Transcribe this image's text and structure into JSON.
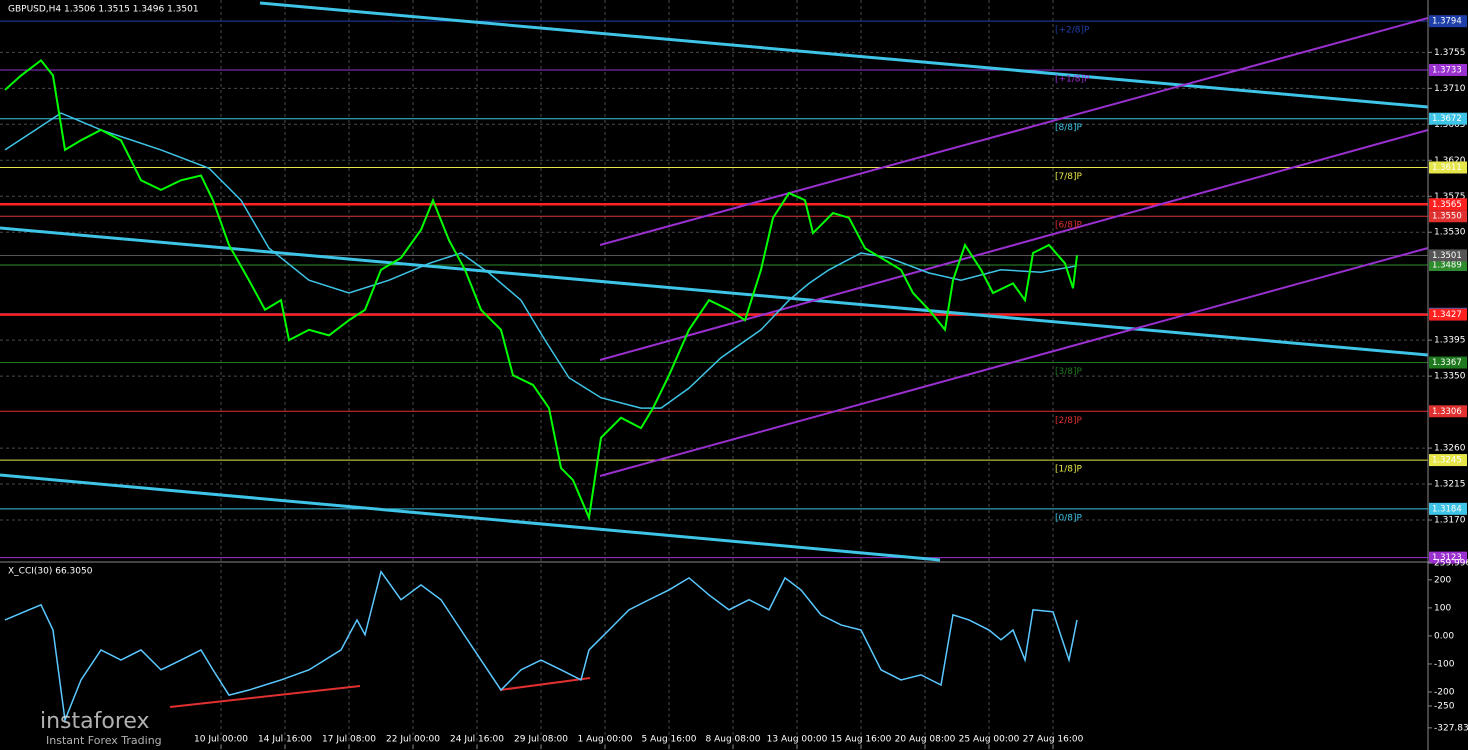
{
  "chart_data": [
    {
      "type": "line",
      "title": "GBPUSD,H4  1.3506 1.3515 1.3496 1.3501",
      "xlim": [
        0,
        356
      ],
      "ylim": [
        1.312,
        1.3818
      ],
      "xticks": [
        {
          "value": 54,
          "label": "10 Jul 00:00"
        },
        {
          "value": 70,
          "label": "14 Jul 16:00"
        },
        {
          "value": 86,
          "label": "17 Jul 08:00"
        },
        {
          "value": 102,
          "label": "22 Jul 00:00"
        },
        {
          "value": 118,
          "label": "24 Jul 16:00"
        },
        {
          "value": 134,
          "label": "29 Jul 08:00"
        },
        {
          "value": 150,
          "label": "1 Aug 00:00"
        },
        {
          "value": 166,
          "label": "5 Aug 16:00"
        },
        {
          "value": 182,
          "label": "8 Aug 08:00"
        },
        {
          "value": 198,
          "label": "13 Aug 00:00"
        },
        {
          "value": 214,
          "label": "15 Aug 16:00"
        },
        {
          "value": 230,
          "label": "20 Aug 08:00"
        },
        {
          "value": 246,
          "label": "25 Aug 00:00"
        },
        {
          "value": 262,
          "label": "27 Aug 16:00"
        }
      ],
      "yticks": [
        1.3755,
        {
          "value": 1.371,
          "label": "1.3710"
        },
        1.3665,
        {
          "value": 1.362,
          "label": "1.3620"
        },
        1.3575,
        {
          "value": 1.353,
          "label": "1.3530"
        },
        1.3395,
        {
          "value": 1.335,
          "label": "1.3350"
        },
        {
          "value": 1.326,
          "label": "1.3260"
        },
        1.3215,
        {
          "value": 1.317,
          "label": "1.3170"
        }
      ],
      "grid": true,
      "series": [
        {
          "color": "#00ff00",
          "x": [
            0,
            4,
            9,
            12,
            15,
            19,
            24,
            29,
            34,
            39,
            44,
            49,
            52,
            56,
            61,
            65,
            69,
            71,
            76,
            81,
            86,
            90,
            94,
            99,
            104,
            107,
            111,
            115,
            119,
            124,
            127,
            132,
            136,
            139,
            142,
            146,
            149,
            154,
            159,
            162,
            166,
            171,
            176,
            181,
            185,
            189,
            192,
            196,
            200,
            202,
            207,
            211,
            215,
            219,
            224,
            227,
            231,
            235,
            237,
            240,
            244,
            247,
            252,
            255,
            257,
            261,
            265,
            267,
            268
          ],
          "values": [
            1.3708,
            1.3726,
            1.3745,
            1.3726,
            1.3633,
            1.3645,
            1.3658,
            1.3645,
            1.3595,
            1.3583,
            1.3595,
            1.3601,
            1.357,
            1.3514,
            1.347,
            1.3433,
            1.3445,
            1.3395,
            1.3408,
            1.3401,
            1.342,
            1.3433,
            1.3483,
            1.3498,
            1.3533,
            1.357,
            1.352,
            1.3483,
            1.3433,
            1.3408,
            1.3351,
            1.3339,
            1.331,
            1.3235,
            1.322,
            1.3173,
            1.3273,
            1.3298,
            1.3285,
            1.331,
            1.3351,
            1.3408,
            1.3445,
            1.3433,
            1.342,
            1.3483,
            1.3548,
            1.3579,
            1.357,
            1.3529,
            1.3554,
            1.3548,
            1.351,
            1.3498,
            1.3483,
            1.3454,
            1.3433,
            1.3408,
            1.347,
            1.3514,
            1.3483,
            1.3454,
            1.3466,
            1.3445,
            1.3504,
            1.3514,
            1.3491,
            1.346,
            1.3501
          ]
        },
        {
          "color": "#3ec4e6",
          "x": [
            0,
            14,
            24,
            39,
            51,
            59,
            66,
            76,
            86,
            96,
            106,
            114,
            121,
            129,
            135,
            141,
            149,
            159,
            164,
            171,
            179,
            189,
            196,
            201,
            206,
            214,
            221,
            231,
            239,
            249,
            259,
            268
          ],
          "values": [
            1.3633,
            1.3679,
            1.3658,
            1.3633,
            1.361,
            1.357,
            1.351,
            1.347,
            1.3454,
            1.347,
            1.3491,
            1.3504,
            1.3479,
            1.3445,
            1.3395,
            1.3348,
            1.3323,
            1.331,
            1.331,
            1.3335,
            1.3373,
            1.3408,
            1.3445,
            1.3466,
            1.3483,
            1.3504,
            1.3498,
            1.3479,
            1.347,
            1.3483,
            1.348,
            1.3488
          ]
        }
      ],
      "levels": [
        {
          "price": 1.3794,
          "label": "[+2/8]P",
          "color": "#1f3fa8"
        },
        {
          "price": 1.3733,
          "label": "[+1/8]P",
          "color": "#9b30d0"
        },
        {
          "price": 1.3672,
          "label": "[8/8]P",
          "color": "#3ec4e6"
        },
        {
          "price": 1.3611,
          "label": "[7/8]P",
          "color": "#e6e64a"
        },
        {
          "price": 1.355,
          "price_label": "1.3550",
          "label": "[6/8]P",
          "color": "#e03030"
        },
        {
          "price": 1.3489,
          "color": "#2e8b2e"
        },
        {
          "price": 1.3428,
          "color": "#2a6fd0"
        },
        {
          "price": 1.3367,
          "label": "[3/8]P",
          "color": "#1f7a1f"
        },
        {
          "price": 1.3306,
          "label": "[2/8]P",
          "color": "#e03030"
        },
        {
          "price": 1.3245,
          "label": "[1/8]P",
          "color": "#e6e64a"
        },
        {
          "price": 1.3184,
          "label": "[0/8]P",
          "color": "#3ec4e6"
        },
        {
          "price": 1.3123,
          "color": "#9b30d0"
        }
      ],
      "key_levels": {
        "color": "#ff2020",
        "values": [
          1.3565,
          1.3427
        ]
      },
      "last_price": 1.3501
    },
    {
      "type": "line",
      "title": "X_CCI(30) 66.3050",
      "xlim": [
        0,
        356
      ],
      "ylim": [
        -389,
        260
      ],
      "yticks": [
        {
          "value": 259.9969,
          "label": "259.9969"
        },
        200,
        100,
        {
          "value": 0,
          "label": "0.00"
        },
        -100,
        -200,
        -250,
        {
          "value": -327.832,
          "label": "-327.832"
        }
      ],
      "series": [
        {
          "color": "#5bc8ff",
          "x": [
            0,
            6,
            9,
            12,
            15,
            19,
            24,
            29,
            34,
            39,
            44,
            49,
            52,
            56,
            61,
            69,
            76,
            84,
            88,
            90,
            94,
            99,
            104,
            109,
            114,
            119,
            124,
            129,
            134,
            139,
            144,
            146,
            151,
            156,
            161,
            166,
            171,
            176,
            181,
            186,
            191,
            195,
            199,
            204,
            209,
            214,
            219,
            224,
            229,
            234,
            237,
            241,
            246,
            249,
            252,
            255,
            257,
            262,
            266,
            268
          ],
          "values": [
            57,
            93,
            111,
            21,
            -300,
            -157,
            -50,
            -86,
            -50,
            -121,
            -86,
            -50,
            -121,
            -211,
            -193,
            -157,
            -121,
            -50,
            57,
            4,
            229,
            129,
            182,
            129,
            21,
            -86,
            -193,
            -121,
            -86,
            -121,
            -157,
            -50,
            21,
            93,
            129,
            164,
            207,
            146,
            93,
            129,
            93,
            207,
            164,
            75,
            39,
            21,
            -121,
            -157,
            -139,
            -175,
            75,
            57,
            21,
            -14,
            21,
            -86,
            93,
            86,
            -86,
            57
          ]
        }
      ]
    }
  ],
  "watermark": {
    "brand": "instaforex",
    "tagline": "Instant Forex Trading"
  }
}
